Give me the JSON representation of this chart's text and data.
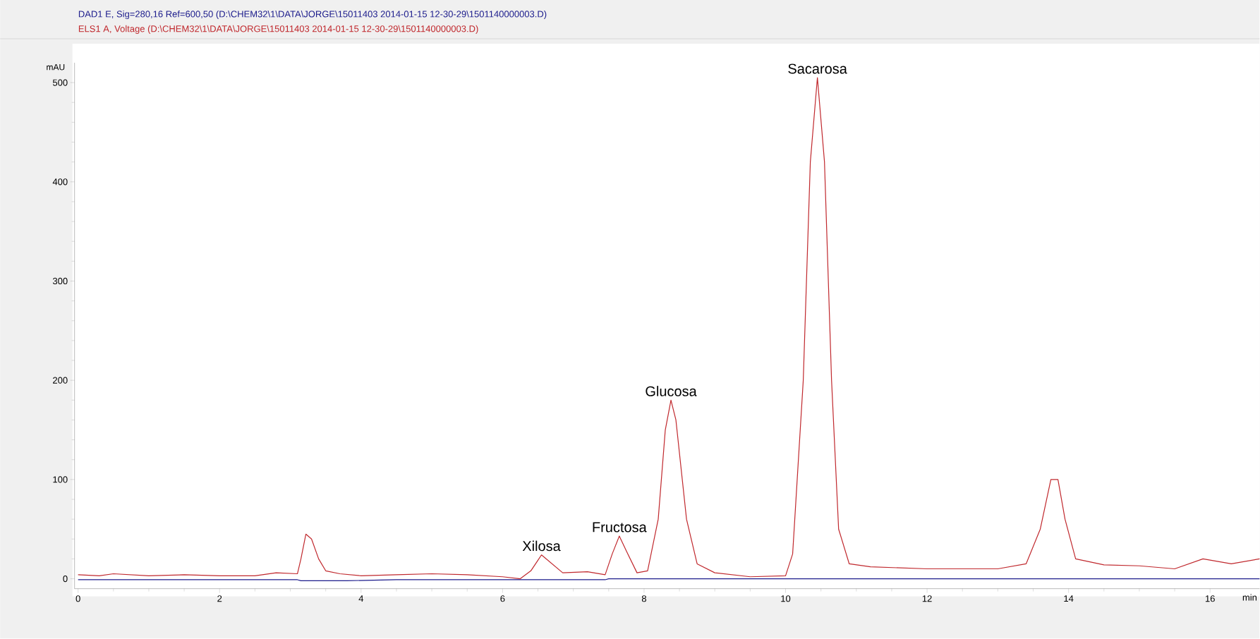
{
  "chart_data": {
    "type": "line",
    "xlabel": "min",
    "ylabel": "mAU",
    "xlim": [
      -0.05,
      16.7
    ],
    "ylim": [
      -10,
      520
    ],
    "xticks": [
      0,
      2,
      4,
      6,
      8,
      10,
      12,
      14,
      16
    ],
    "yticks": [
      0,
      100,
      200,
      300,
      400,
      500
    ],
    "grid": false,
    "legend": "top left",
    "marker": "none",
    "line_style": "solid",
    "series": [
      {
        "name": "DAD1 E, Sig=280,16 Ref=600,50 (D:\\CHEM32\\1\\DATA\\JORGE\\15011403 2014-01-15 12-30-29\\1501140000003.D)",
        "color": "#1c1c8c",
        "x": [
          0,
          3.1,
          3.15,
          3.8,
          4.5,
          7.45,
          7.5,
          16.7
        ],
        "values": [
          -1,
          -1,
          -2,
          -2,
          -1,
          -1,
          0,
          0
        ]
      },
      {
        "name": "ELS1 A, Voltage (D:\\CHEM32\\1\\DATA\\JORGE\\15011403 2014-01-15 12-30-29\\1501140000003.D)",
        "color": "#c0282d",
        "x": [
          0,
          0.3,
          0.5,
          1,
          1.5,
          2,
          2.5,
          2.8,
          3.1,
          3.15,
          3.22,
          3.3,
          3.4,
          3.5,
          3.7,
          4,
          4.5,
          5,
          5.5,
          6,
          6.25,
          6.4,
          6.55,
          6.7,
          6.85,
          7.2,
          7.45,
          7.55,
          7.65,
          7.75,
          7.9,
          8.05,
          8.2,
          8.3,
          8.38,
          8.45,
          8.6,
          8.75,
          9,
          9.5,
          10,
          10.1,
          10.25,
          10.35,
          10.45,
          10.55,
          10.65,
          10.75,
          10.9,
          11.2,
          12,
          12.5,
          13,
          13.4,
          13.6,
          13.75,
          13.85,
          13.95,
          14.1,
          14.5,
          15,
          15.5,
          15.9,
          16.3,
          16.7
        ],
        "values": [
          4,
          3,
          5,
          3,
          4,
          3,
          3,
          6,
          5,
          20,
          45,
          40,
          20,
          8,
          5,
          3,
          4,
          5,
          4,
          2,
          0,
          8,
          24,
          15,
          6,
          7,
          4,
          25,
          43,
          28,
          6,
          8,
          60,
          150,
          180,
          160,
          60,
          15,
          6,
          2,
          3,
          25,
          200,
          420,
          505,
          420,
          200,
          50,
          15,
          12,
          10,
          10,
          10,
          15,
          50,
          100,
          100,
          60,
          20,
          14,
          13,
          10,
          20,
          15,
          20
        ]
      }
    ],
    "annotations": [
      {
        "text": "Xilosa",
        "x": 6.55,
        "y": 24
      },
      {
        "text": "Fructosa",
        "x": 7.65,
        "y": 43
      },
      {
        "text": "Glucosa",
        "x": 8.38,
        "y": 180
      },
      {
        "text": "Sacarosa",
        "x": 10.45,
        "y": 505
      }
    ]
  }
}
